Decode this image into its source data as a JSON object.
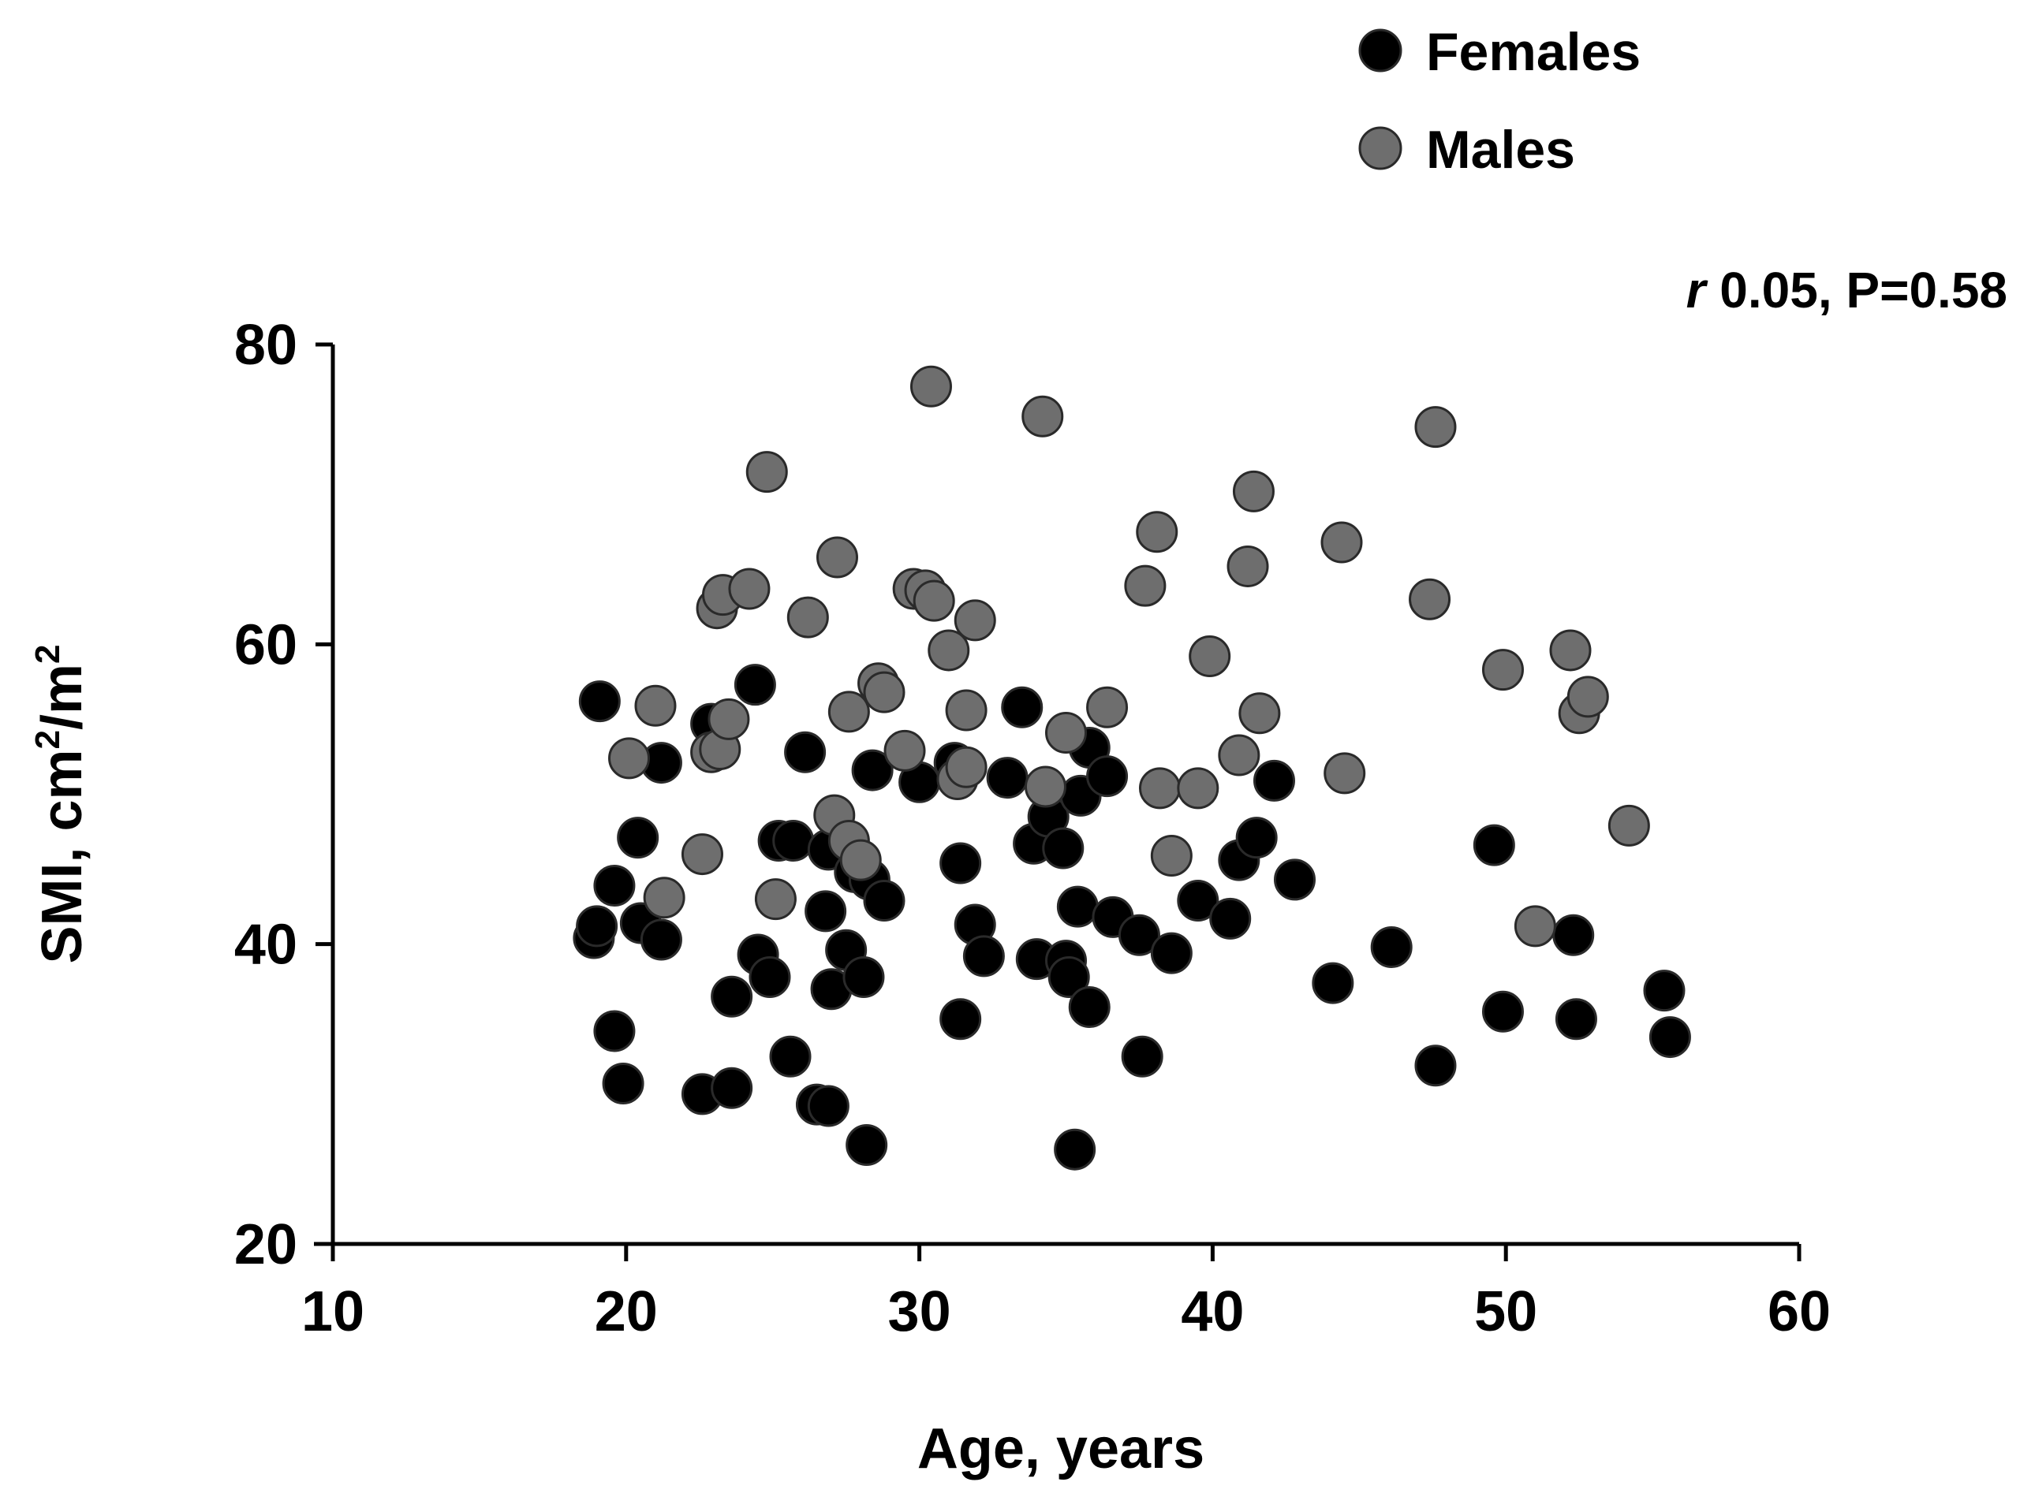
{
  "chart_data": {
    "type": "scatter",
    "xlabel": "Age, years",
    "ylabel_main": "SMI, cm",
    "ylabel_sup1": "2",
    "ylabel_mid": "/m",
    "ylabel_sup2": "2",
    "annotation": {
      "r_symbol": "r",
      "text": " 0.05, P=0.58"
    },
    "xlim": [
      10,
      60
    ],
    "ylim": [
      20,
      80
    ],
    "xticks": [
      10,
      20,
      30,
      40,
      50,
      60
    ],
    "yticks": [
      20,
      40,
      60,
      80
    ],
    "grid": false,
    "legend_position": "top-right",
    "series": [
      {
        "name": "Females",
        "color": "#000000",
        "points": [
          [
            19.1,
            56.2
          ],
          [
            18.9,
            40.4
          ],
          [
            19.0,
            41.2
          ],
          [
            19.6,
            43.9
          ],
          [
            20.4,
            47.1
          ],
          [
            20.5,
            41.4
          ],
          [
            19.6,
            34.2
          ],
          [
            19.9,
            30.7
          ],
          [
            21.2,
            52.1
          ],
          [
            21.2,
            40.3
          ],
          [
            22.6,
            30.0
          ],
          [
            22.9,
            54.7
          ],
          [
            23.6,
            30.4
          ],
          [
            23.6,
            36.5
          ],
          [
            24.4,
            57.3
          ],
          [
            24.5,
            39.3
          ],
          [
            24.9,
            37.8
          ],
          [
            25.2,
            46.9
          ],
          [
            25.7,
            46.9
          ],
          [
            25.6,
            32.5
          ],
          [
            26.1,
            52.8
          ],
          [
            26.5,
            29.3
          ],
          [
            26.9,
            29.2
          ],
          [
            26.9,
            46.3
          ],
          [
            26.8,
            42.2
          ],
          [
            27.0,
            37.0
          ],
          [
            27.5,
            39.6
          ],
          [
            27.8,
            44.8
          ],
          [
            28.1,
            37.8
          ],
          [
            28.3,
            44.3
          ],
          [
            28.2,
            26.6
          ],
          [
            28.4,
            51.6
          ],
          [
            28.8,
            42.9
          ],
          [
            30.0,
            50.8
          ],
          [
            31.2,
            52.1
          ],
          [
            31.4,
            45.4
          ],
          [
            31.4,
            35.0
          ],
          [
            31.9,
            41.3
          ],
          [
            32.2,
            39.2
          ],
          [
            33.0,
            51.1
          ],
          [
            33.5,
            55.8
          ],
          [
            33.9,
            46.7
          ],
          [
            34.0,
            39.0
          ],
          [
            34.4,
            48.5
          ],
          [
            34.9,
            46.4
          ],
          [
            35.0,
            38.9
          ],
          [
            35.1,
            37.8
          ],
          [
            35.4,
            42.5
          ],
          [
            35.5,
            49.9
          ],
          [
            35.8,
            53.1
          ],
          [
            35.8,
            35.8
          ],
          [
            35.3,
            26.3
          ],
          [
            36.4,
            51.2
          ],
          [
            36.6,
            41.8
          ],
          [
            37.5,
            40.6
          ],
          [
            37.6,
            32.5
          ],
          [
            38.6,
            39.4
          ],
          [
            39.5,
            42.9
          ],
          [
            40.6,
            41.7
          ],
          [
            40.9,
            45.6
          ],
          [
            41.5,
            47.1
          ],
          [
            42.1,
            50.9
          ],
          [
            42.8,
            44.3
          ],
          [
            44.1,
            37.4
          ],
          [
            46.1,
            39.8
          ],
          [
            47.6,
            31.9
          ],
          [
            49.6,
            46.6
          ],
          [
            49.9,
            35.5
          ],
          [
            52.3,
            40.6
          ],
          [
            52.4,
            35.0
          ],
          [
            55.4,
            36.9
          ],
          [
            55.6,
            33.8
          ]
        ]
      },
      {
        "name": "Males",
        "color": "#6e6e6e",
        "points": [
          [
            20.1,
            52.4
          ],
          [
            21.0,
            55.9
          ],
          [
            21.3,
            43.1
          ],
          [
            22.6,
            46.0
          ],
          [
            22.9,
            52.8
          ],
          [
            23.2,
            53.0
          ],
          [
            23.1,
            62.4
          ],
          [
            23.3,
            63.3
          ],
          [
            23.5,
            55.0
          ],
          [
            24.2,
            63.7
          ],
          [
            24.8,
            71.5
          ],
          [
            25.1,
            43.0
          ],
          [
            26.2,
            61.8
          ],
          [
            27.1,
            48.6
          ],
          [
            27.2,
            65.8
          ],
          [
            27.6,
            46.9
          ],
          [
            27.6,
            55.5
          ],
          [
            28.0,
            45.6
          ],
          [
            28.6,
            57.4
          ],
          [
            28.8,
            56.8
          ],
          [
            29.5,
            52.9
          ],
          [
            29.8,
            63.7
          ],
          [
            30.2,
            63.6
          ],
          [
            30.5,
            62.9
          ],
          [
            30.4,
            77.2
          ],
          [
            31.0,
            59.6
          ],
          [
            31.3,
            51.0
          ],
          [
            31.6,
            51.8
          ],
          [
            31.6,
            55.6
          ],
          [
            31.9,
            61.6
          ],
          [
            34.2,
            75.2
          ],
          [
            34.3,
            50.5
          ],
          [
            35.0,
            54.1
          ],
          [
            36.4,
            55.8
          ],
          [
            37.7,
            63.9
          ],
          [
            38.1,
            67.5
          ],
          [
            38.2,
            50.4
          ],
          [
            38.6,
            45.9
          ],
          [
            39.5,
            50.4
          ],
          [
            39.9,
            59.2
          ],
          [
            40.9,
            52.6
          ],
          [
            41.2,
            65.2
          ],
          [
            41.4,
            70.2
          ],
          [
            41.6,
            55.4
          ],
          [
            44.4,
            66.8
          ],
          [
            44.5,
            51.4
          ],
          [
            47.4,
            63.0
          ],
          [
            47.6,
            74.5
          ],
          [
            49.9,
            58.3
          ],
          [
            51.0,
            41.2
          ],
          [
            52.2,
            59.6
          ],
          [
            52.5,
            55.4
          ],
          [
            52.8,
            56.5
          ],
          [
            54.2,
            47.9
          ]
        ]
      }
    ]
  }
}
